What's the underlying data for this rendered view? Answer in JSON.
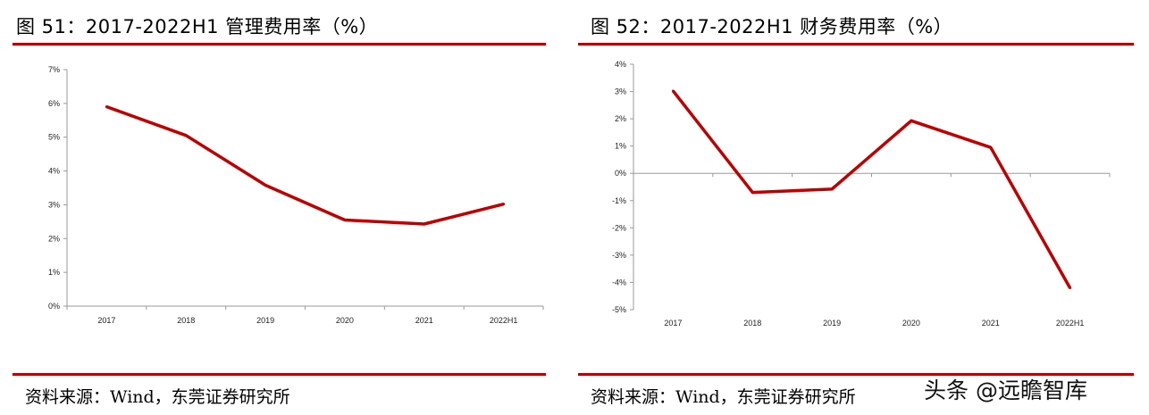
{
  "chart_data": [
    {
      "type": "line",
      "title": "图 51：2017-2022H1 管理费用率（%）",
      "categories": [
        "2017",
        "2018",
        "2019",
        "2020",
        "2021",
        "2022H1"
      ],
      "series": [
        {
          "values": [
            5.9,
            5.05,
            3.58,
            2.55,
            2.43,
            3.02
          ]
        }
      ],
      "yticks": [
        "0%",
        "1%",
        "2%",
        "3%",
        "4%",
        "5%",
        "6%",
        "7%"
      ],
      "ylim": [
        0,
        7
      ],
      "xlabel": "",
      "ylabel": "",
      "grid": false,
      "line_color": "#c00000",
      "source": "资料来源：Wind，东莞证券研究所"
    },
    {
      "type": "line",
      "title": "图 52：2017-2022H1 财务费用率（%）",
      "categories": [
        "2017",
        "2018",
        "2019",
        "2020",
        "2021",
        "2022H1"
      ],
      "series": [
        {
          "values": [
            3.02,
            -0.7,
            -0.58,
            1.93,
            0.95,
            -4.2
          ]
        }
      ],
      "yticks": [
        "-5%",
        "-4%",
        "-3%",
        "-2%",
        "-1%",
        "0%",
        "1%",
        "2%",
        "3%",
        "4%"
      ],
      "ylim": [
        -5,
        4
      ],
      "xlabel": "",
      "ylabel": "",
      "grid": false,
      "line_color": "#c00000",
      "source": "资料来源：Wind，东莞证券研究所"
    }
  ],
  "watermark": "头条 @远瞻智库"
}
